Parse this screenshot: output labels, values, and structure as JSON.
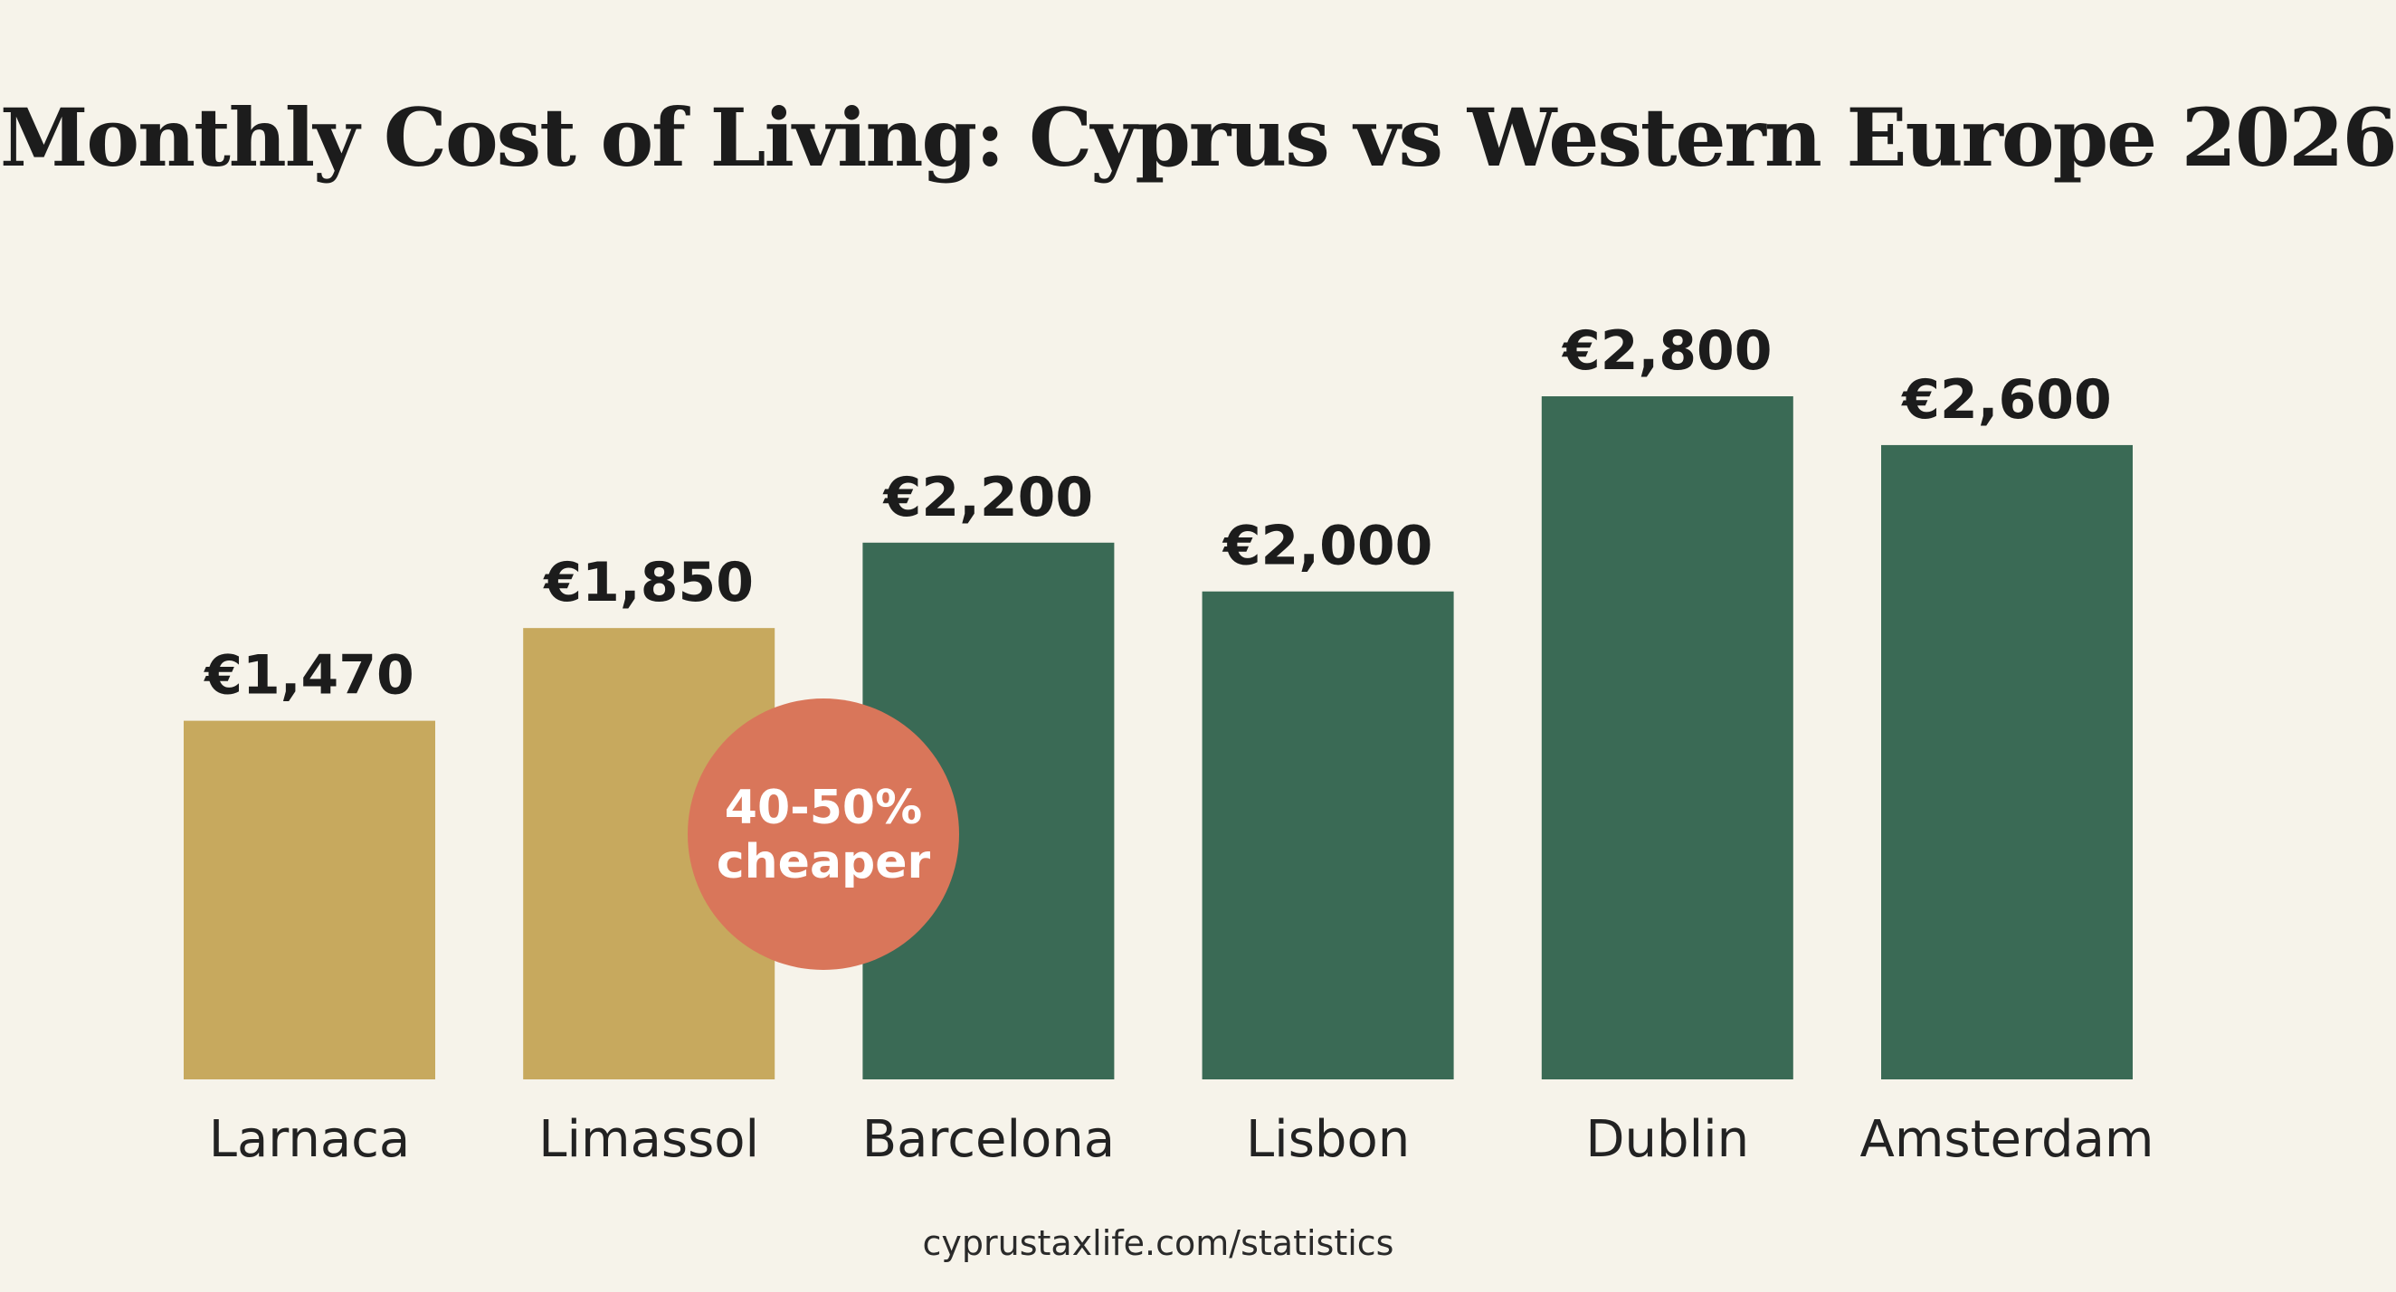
{
  "chart_data": {
    "type": "bar",
    "title": "Monthly Cost of Living: Cyprus vs Western Europe 2026",
    "categories": [
      "Larnaca",
      "Limassol",
      "Barcelona",
      "Lisbon",
      "Dublin",
      "Amsterdam"
    ],
    "values": [
      1470,
      1850,
      2200,
      2000,
      2800,
      2600
    ],
    "value_labels": [
      "€1,470",
      "€1,850",
      "€2,200",
      "€2,000",
      "€2,800",
      "€2,600"
    ],
    "bar_colors": [
      "#c7a95e",
      "#c7a95e",
      "#3a6a55",
      "#3a6a55",
      "#3a6a55",
      "#3a6a55"
    ],
    "ylim": [
      0,
      2800
    ],
    "grid": false,
    "xlabel": "",
    "ylabel": "",
    "annotation": {
      "line1": "40-50%",
      "line2": "cheaper",
      "color": "#d9765a"
    }
  },
  "footer": {
    "source": "cyprustaxlife.com/statistics"
  }
}
